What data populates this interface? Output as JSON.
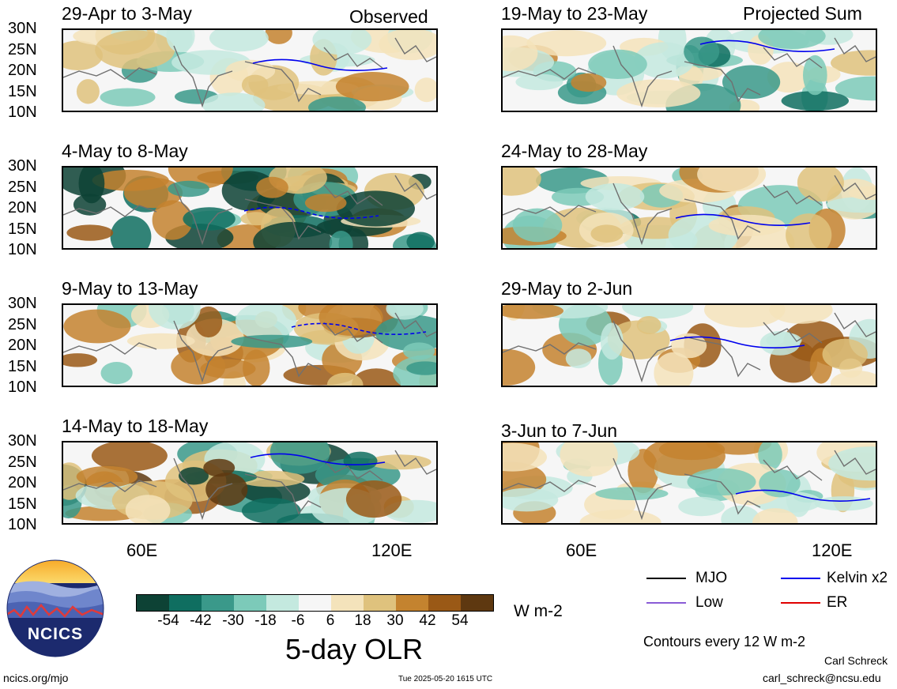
{
  "panels_left_header": "Observed",
  "panels_right_header": "Projected Sum",
  "observed": [
    {
      "title": "29-Apr to 3-May"
    },
    {
      "title": "4-May to 8-May"
    },
    {
      "title": "9-May to 13-May"
    },
    {
      "title": "14-May to 18-May"
    }
  ],
  "projected": [
    {
      "title": "19-May to 23-May"
    },
    {
      "title": "24-May to 28-May"
    },
    {
      "title": "29-May to 2-Jun"
    },
    {
      "title": "3-Jun to 7-Jun"
    }
  ],
  "lat_labels": [
    "30N",
    "25N",
    "20N",
    "15N",
    "10N"
  ],
  "lon_labels": [
    "60E",
    "120E"
  ],
  "colorbar": {
    "colors": [
      "#0d4235",
      "#0f6e60",
      "#3a998a",
      "#7ccab9",
      "#c4e9df",
      "#f6f6f6",
      "#f4e3bb",
      "#dfc27d",
      "#c4832f",
      "#9a5916",
      "#5e3810"
    ],
    "ticks": [
      "-54",
      "-42",
      "-30",
      "-18",
      "-6",
      "6",
      "18",
      "30",
      "42",
      "54"
    ],
    "units": "W m-2",
    "title": "5-day OLR"
  },
  "legend": {
    "items": [
      {
        "label": "MJO",
        "color": "#000000"
      },
      {
        "label": "Kelvin x2",
        "color": "#0000ee"
      },
      {
        "label": "Low",
        "color": "#8a5cd6"
      },
      {
        "label": "ER",
        "color": "#e00000"
      }
    ],
    "contour_note": "Contours every 12 W m-2"
  },
  "logo": {
    "text": "NCICS"
  },
  "footer": {
    "url": "ncics.org/mjo",
    "timestamp": "Tue 2025-05-20 1615 UTC",
    "author": "Carl Schreck",
    "email": "carl_schreck@ncsu.edu"
  }
}
